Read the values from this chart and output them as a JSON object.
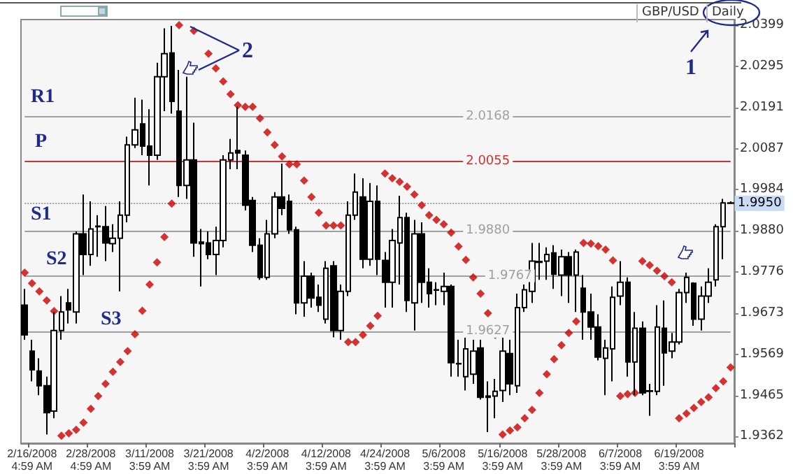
{
  "chart_data": {
    "type": "candlestick",
    "categories": [
      null,
      "2/16/2008 4:59 AM",
      null,
      null,
      null,
      null,
      null,
      null,
      null,
      "2/28/2008 4:59 AM",
      null,
      null,
      null,
      null,
      null,
      null,
      null,
      "3/11/2008 3:59 AM",
      null,
      null,
      null,
      null,
      null,
      null,
      null,
      "3/21/2008 3:59 AM",
      null,
      null,
      null,
      null,
      null,
      null,
      null,
      "4/2/2008 3:59 AM",
      null,
      null,
      null,
      null,
      null,
      null,
      null,
      "4/12/2008 3:59 AM",
      null,
      null,
      null,
      null,
      null,
      null,
      null,
      "4/24/2008 3:59 AM",
      null,
      null,
      null,
      null,
      null,
      null,
      null,
      "5/6/2008 3:59 AM",
      null,
      null,
      null,
      null,
      null,
      null,
      null,
      "5/16/2008 3:59 AM",
      null,
      null,
      null,
      null,
      null,
      null,
      null,
      "5/28/2008 3:59 AM",
      null,
      null,
      null,
      null,
      null,
      null,
      null,
      "6/7/2008 3:59 AM",
      null,
      null,
      null,
      null,
      null,
      null,
      null,
      "6/19/2008 3:59 AM",
      null,
      null,
      null,
      null,
      null,
      null,
      null
    ],
    "ylim": [
      1.9345,
      2.0413
    ],
    "yticks": [
      1.9362,
      1.9465,
      1.9569,
      1.9673,
      1.9776,
      {
        "value": 1.988,
        "label": "1.9880"
      },
      1.9984,
      2.0087,
      2.0191,
      2.0295,
      2.0399
    ],
    "marker": "diamond",
    "series": [
      {
        "color": "#000000",
        "ohlc": [
          [
            1.9693,
            1.9734,
            1.9606,
            1.9618
          ],
          [
            1.9577,
            1.9606,
            1.9501,
            1.953
          ],
          [
            1.9527,
            1.9559,
            1.9466,
            1.949
          ],
          [
            1.949,
            1.9513,
            1.9367,
            1.9422
          ],
          [
            1.9426,
            1.9676,
            1.9408,
            1.9629
          ],
          [
            1.9629,
            1.9716,
            1.9606,
            1.9676
          ],
          [
            1.9699,
            1.9734,
            1.9647,
            1.9681
          ],
          [
            1.9676,
            1.9879,
            1.9647,
            1.9873
          ],
          [
            1.9873,
            1.9972,
            1.9769,
            1.9821
          ],
          [
            1.9821,
            1.9955,
            1.9792,
            1.9885
          ],
          [
            1.9891,
            1.992,
            1.9815,
            1.9892
          ],
          [
            1.9891,
            1.9943,
            1.9804,
            1.985
          ],
          [
            1.9848,
            1.9897,
            1.9827,
            1.9862
          ],
          [
            1.9862,
            1.9955,
            1.9728,
            1.992
          ],
          [
            1.992,
            2.0118,
            1.9902,
            2.0097
          ],
          [
            2.0097,
            2.0216,
            2.0089,
            2.0135
          ],
          [
            2.015,
            2.0211,
            2.0071,
            2.0094
          ],
          [
            2.0094,
            2.0187,
            1.9995,
            2.0071
          ],
          [
            2.0071,
            2.0304,
            2.0059,
            2.0269
          ],
          [
            2.0269,
            2.0391,
            2.0182,
            2.0327
          ],
          [
            2.0329,
            2.0397,
            2.0176,
            2.0207
          ],
          [
            2.0182,
            2.0286,
            1.9966,
            1.9995
          ],
          [
            1.9995,
            2.0269,
            1.9961,
            2.0059
          ],
          [
            2.0059,
            2.0153,
            1.9815,
            1.985
          ],
          [
            1.9852,
            1.9885,
            1.974,
            1.9848
          ],
          [
            1.985,
            1.9879,
            1.9809,
            1.9821
          ],
          [
            1.9821,
            1.9891,
            1.9769,
            1.9856
          ],
          [
            1.9856,
            2.0071,
            1.9839,
            2.0059
          ],
          [
            2.0059,
            2.0112,
            2.0036,
            2.0077
          ],
          [
            2.0083,
            2.0193,
            2.0036,
            2.0077
          ],
          [
            2.0071,
            2.0083,
            1.9932,
            1.9945
          ],
          [
            1.9957,
            1.9966,
            1.9827,
            1.9844
          ],
          [
            1.9844,
            1.9862,
            1.9757,
            1.9763
          ],
          [
            1.9763,
            1.9908,
            1.9757,
            1.9873
          ],
          [
            1.9873,
            1.9978,
            1.9862,
            1.9966
          ],
          [
            1.9966,
            2.005,
            1.992,
            1.9937
          ],
          [
            1.9955,
            1.9972,
            1.9873,
            1.9883
          ],
          [
            1.9883,
            1.9891,
            1.967,
            1.9699
          ],
          [
            1.9699,
            1.9804,
            1.9664,
            1.9766
          ],
          [
            1.9766,
            1.9775,
            1.9687,
            1.9711
          ],
          [
            1.9713,
            1.9745,
            1.9676,
            1.9693
          ],
          [
            1.9658,
            1.9804,
            1.9647,
            1.9786
          ],
          [
            1.9792,
            1.9804,
            1.9612,
            1.9629
          ],
          [
            1.9629,
            1.9745,
            1.9606,
            1.9728
          ],
          [
            1.9728,
            1.9955,
            1.9716,
            1.992
          ],
          [
            1.992,
            2.0025,
            1.9908,
            1.9978
          ],
          [
            1.9966,
            2.0013,
            1.9786,
            1.9809
          ],
          [
            1.9809,
            2.0001,
            1.9792,
            1.9955
          ],
          [
            1.9955,
            1.9995,
            1.9769,
            1.9809
          ],
          [
            1.9806,
            1.9827,
            1.9687,
            1.9751
          ],
          [
            1.9751,
            1.9885,
            1.9687,
            1.9856
          ],
          [
            1.985,
            1.9969,
            1.9745,
            1.9914
          ],
          [
            1.9914,
            1.9926,
            1.9676,
            1.9705
          ],
          [
            1.9699,
            1.9908,
            1.9629,
            1.9873
          ],
          [
            1.9873,
            1.9902,
            1.9699,
            1.9751
          ],
          [
            1.9751,
            1.9786,
            1.9687,
            1.9722
          ],
          [
            1.9732,
            1.9751,
            1.9693,
            1.9731
          ],
          [
            1.9728,
            1.9775,
            1.9693,
            1.974
          ],
          [
            1.974,
            1.9745,
            1.9513,
            1.9548
          ],
          [
            1.9545,
            1.9606,
            1.9513,
            1.9546
          ],
          [
            1.9513,
            1.9618,
            1.9478,
            1.9583
          ],
          [
            1.9519,
            1.9606,
            1.9495,
            1.9577
          ],
          [
            1.9585,
            1.9606,
            1.9455,
            1.9461
          ],
          [
            1.9464,
            1.9501,
            1.9373,
            1.9461
          ],
          [
            1.9464,
            1.9507,
            1.9408,
            1.9476
          ],
          [
            1.9478,
            1.9618,
            1.9449,
            1.9577
          ],
          [
            1.9571,
            1.9606,
            1.9466,
            1.9495
          ],
          [
            1.949,
            1.9722,
            1.9472,
            1.9687
          ],
          [
            1.9687,
            1.9745,
            1.9676,
            1.9732
          ],
          [
            1.9728,
            1.985,
            1.9699,
            1.9804
          ],
          [
            1.9801,
            1.985,
            1.9757,
            1.9803
          ],
          [
            1.9804,
            1.9839,
            1.9757,
            1.9821
          ],
          [
            1.9825,
            1.9844,
            1.9734,
            1.9771
          ],
          [
            1.9769,
            1.9833,
            1.9716,
            1.9815
          ],
          [
            1.9815,
            1.9827,
            1.9699,
            1.9769
          ],
          [
            1.9769,
            1.9833,
            1.9676,
            1.9827
          ],
          [
            1.9736,
            1.9769,
            1.9606,
            1.9676
          ],
          [
            1.9676,
            1.9722,
            1.9606,
            1.9638
          ],
          [
            1.9638,
            1.967,
            1.9554,
            1.9562
          ],
          [
            1.9559,
            1.9606,
            1.9466,
            1.9585
          ],
          [
            1.9583,
            1.974,
            1.9501,
            1.9713
          ],
          [
            1.9716,
            1.9804,
            1.9693,
            1.9751
          ],
          [
            1.9751,
            1.9763,
            1.9513,
            1.955
          ],
          [
            1.955,
            1.9676,
            1.9466,
            1.9635
          ],
          [
            1.9635,
            1.9652,
            1.9466,
            1.9472
          ],
          [
            1.9476,
            1.9495,
            1.9414,
            1.9477
          ],
          [
            1.9476,
            1.9693,
            1.9466,
            1.9638
          ],
          [
            1.9635,
            1.9705,
            1.949,
            1.9573
          ],
          [
            1.9577,
            1.9623,
            1.9559,
            1.96
          ],
          [
            1.96,
            1.9734,
            1.9594,
            1.9725
          ],
          [
            1.9725,
            1.9775,
            1.9699,
            1.9763
          ],
          [
            1.9748,
            1.9751,
            1.9641,
            1.9658
          ],
          [
            1.9658,
            1.974,
            1.9629,
            1.9716
          ],
          [
            1.9716,
            1.9786,
            1.9699,
            1.9751
          ],
          [
            1.9757,
            1.9897,
            1.974,
            1.9891
          ],
          [
            1.9891,
            1.9961,
            1.9809,
            1.9951
          ],
          [
            1.9951,
            1.9955,
            1.9948,
            1.995
          ]
        ]
      },
      {
        "type": "scatter",
        "color": "#cc0000",
        "values": [
          1.9775,
          1.9748,
          1.9728,
          1.9705,
          1.9678,
          1.9364,
          1.937,
          1.9379,
          1.9397,
          1.9432,
          1.9464,
          1.9495,
          1.9525,
          1.955,
          1.9577,
          1.962,
          1.9679,
          1.9745,
          1.9801,
          1.9865,
          1.9949,
          2.0399,
          null,
          2.0385,
          null,
          2.0327,
          2.029,
          2.0257,
          2.0225,
          2.0197,
          2.0193,
          2.0193,
          2.0164,
          2.0129,
          2.0097,
          2.0068,
          2.0048,
          2.0048,
          2.0007,
          1.9966,
          1.9926,
          1.9894,
          1.9894,
          1.9894,
          1.96,
          1.96,
          1.9618,
          1.9641,
          1.9666,
          2.0025,
          2.0013,
          2.0004,
          1.9992,
          1.9972,
          1.9945,
          1.992,
          1.9908,
          1.9897,
          1.9876,
          1.9841,
          1.9807,
          1.9763,
          1.9722,
          1.9673,
          1.9618,
          1.9367,
          1.9377,
          1.9385,
          1.9408,
          1.9429,
          1.9472,
          1.9519,
          1.9557,
          1.9592,
          1.9623,
          1.9652,
          1.985,
          1.9848,
          1.9842,
          1.9833,
          1.9806,
          1.9464,
          1.9469,
          1.9472,
          1.9804,
          1.9794,
          1.978,
          1.9766,
          1.9751,
          1.9408,
          1.942,
          1.9434,
          1.9449,
          1.9461,
          1.9484,
          1.9501,
          1.9536
        ]
      }
    ],
    "ref_lines": [
      {
        "axis": "y",
        "value": 2.0168,
        "label": "2.0168",
        "color": "#a0a0a0"
      },
      {
        "axis": "y",
        "value": 2.0055,
        "label": "2.0055",
        "color": "#cc3333"
      },
      {
        "axis": "y",
        "value": 1.988,
        "label": "1.9880",
        "color": "#a0a0a0"
      },
      {
        "axis": "y",
        "value": 1.9767,
        "label": "1.9767",
        "color": "#a0a0a0"
      },
      {
        "axis": "y",
        "value": 1.9627,
        "label": "1.9627",
        "color": "#a0a0a0"
      },
      {
        "axis": "y",
        "value": 1.995,
        "label": "1.9950",
        "color": "#a0a0a0",
        "line_style": "dotted"
      }
    ],
    "annotations": [
      "R1",
      "P",
      "S1",
      "S2",
      "S3",
      "GBP/USD",
      "Daily",
      "1",
      "2"
    ]
  }
}
